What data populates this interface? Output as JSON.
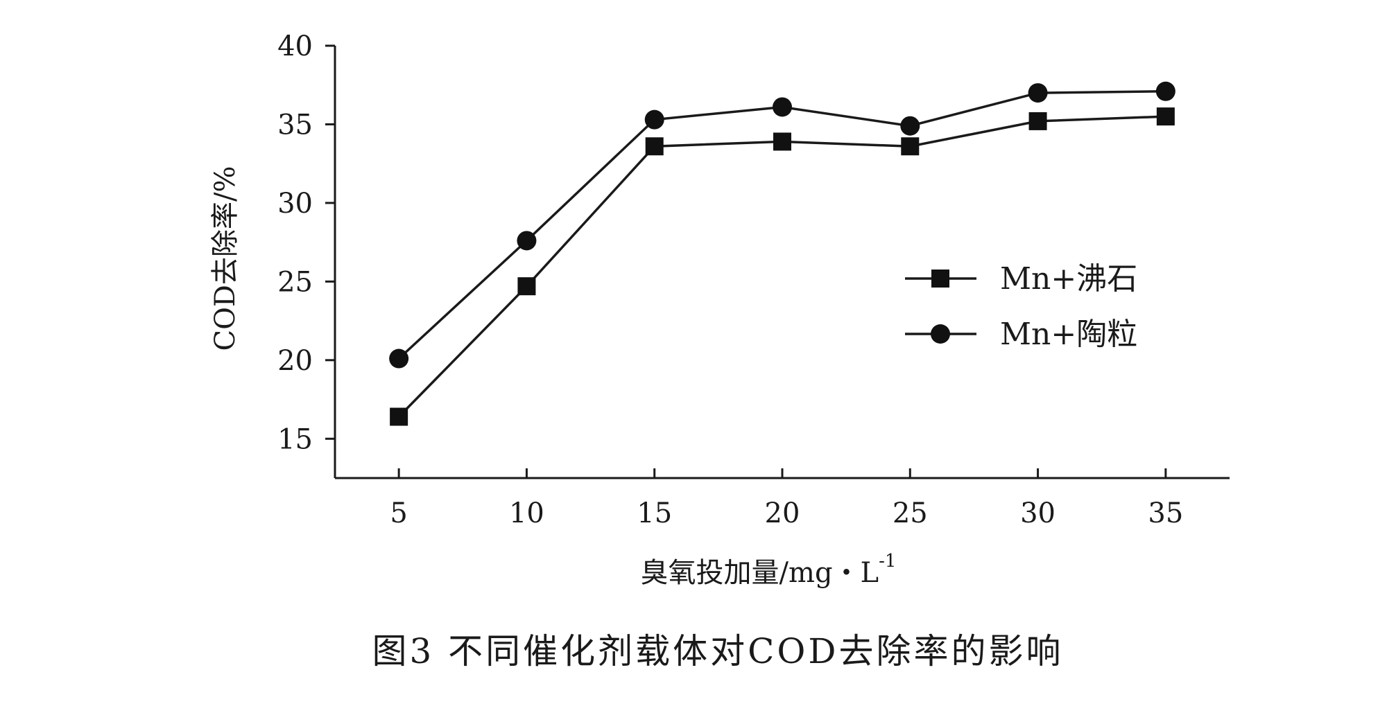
{
  "chart_data": {
    "type": "line",
    "x": [
      5,
      10,
      15,
      20,
      25,
      30,
      35
    ],
    "x_tick_labels": [
      "5",
      "10",
      "15",
      "20",
      "25",
      "30",
      "35"
    ],
    "y_tick_values": [
      15,
      20,
      25,
      30,
      35,
      40
    ],
    "y_tick_labels": [
      "15",
      "20",
      "25",
      "30",
      "35",
      "40"
    ],
    "xlim": [
      2.5,
      37.5
    ],
    "ylim": [
      12.5,
      40
    ],
    "xlabel": "臭氧投加量/mg・L",
    "xlabel_superscript": "-1",
    "ylabel": "COD去除率/%",
    "caption": "图3 不同催化剂载体对COD去除率的影响",
    "grid": false,
    "legend_position": "center-right",
    "series": [
      {
        "name": "Mn+沸石",
        "marker": "square",
        "color": "#111111",
        "values": [
          16.4,
          24.7,
          33.6,
          33.9,
          33.6,
          35.2,
          35.5
        ]
      },
      {
        "name": "Mn+陶粒",
        "marker": "circle",
        "color": "#111111",
        "values": [
          20.1,
          27.6,
          35.3,
          36.1,
          34.9,
          37.0,
          37.1
        ]
      }
    ]
  }
}
